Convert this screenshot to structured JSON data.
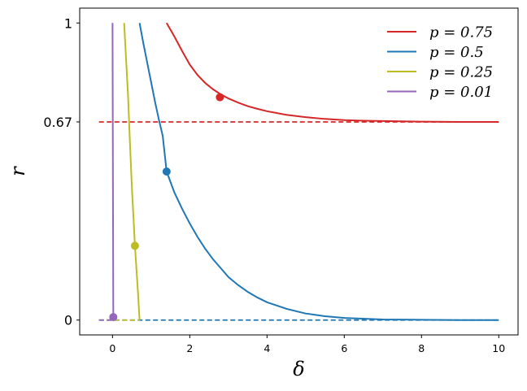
{
  "chart_data": {
    "type": "line",
    "xlabel": "δ",
    "ylabel": "r",
    "xlim": [
      -0.85,
      10.5
    ],
    "ylim": [
      -0.05,
      1.05
    ],
    "x_ticks": [
      {
        "value": 0,
        "label": "0"
      },
      {
        "value": 2,
        "label": "2"
      },
      {
        "value": 4,
        "label": "4"
      },
      {
        "value": 6,
        "label": "6"
      },
      {
        "value": 8,
        "label": "8"
      },
      {
        "value": 10,
        "label": "10"
      }
    ],
    "y_ticks": [
      {
        "value": 0,
        "label": "0"
      },
      {
        "value": 0.667,
        "label": "0.67"
      },
      {
        "value": 1,
        "label": "1"
      }
    ],
    "grid": false,
    "legend_position": "top-right",
    "series": [
      {
        "name": "p = 0.75",
        "legend_label": "p = 0.75",
        "color": "#d62728",
        "points": [
          [
            1.4,
            1.0
          ],
          [
            1.6,
            0.955
          ],
          [
            1.8,
            0.906
          ],
          [
            2.0,
            0.86
          ],
          [
            2.2,
            0.825
          ],
          [
            2.4,
            0.798
          ],
          [
            2.6,
            0.777
          ],
          [
            2.8,
            0.76
          ],
          [
            3.0,
            0.746
          ],
          [
            3.25,
            0.732
          ],
          [
            3.5,
            0.72
          ],
          [
            3.75,
            0.711
          ],
          [
            4.0,
            0.703
          ],
          [
            4.5,
            0.691
          ],
          [
            5.0,
            0.683
          ],
          [
            5.5,
            0.677
          ],
          [
            6.0,
            0.673
          ],
          [
            6.5,
            0.671
          ],
          [
            7.0,
            0.67
          ],
          [
            8.0,
            0.668
          ],
          [
            9.0,
            0.667
          ],
          [
            10.0,
            0.667
          ]
        ],
        "marker": [
          2.78,
          0.75
        ],
        "asymptote": 0.667,
        "asymptote_range": [
          -0.35,
          10.0
        ]
      },
      {
        "name": "p = 0.5",
        "legend_label": "p = 0.5",
        "color": "#1f77b4",
        "points": [
          [
            0.7,
            1.0
          ],
          [
            0.8,
            0.93
          ],
          [
            0.9,
            0.865
          ],
          [
            1.0,
            0.8
          ],
          [
            1.1,
            0.735
          ],
          [
            1.2,
            0.675
          ],
          [
            1.3,
            0.62
          ],
          [
            1.4,
            0.5
          ],
          [
            1.6,
            0.43
          ],
          [
            1.8,
            0.375
          ],
          [
            2.0,
            0.325
          ],
          [
            2.2,
            0.28
          ],
          [
            2.4,
            0.24
          ],
          [
            2.6,
            0.205
          ],
          [
            2.8,
            0.175
          ],
          [
            3.0,
            0.145
          ],
          [
            3.25,
            0.118
          ],
          [
            3.5,
            0.095
          ],
          [
            3.75,
            0.076
          ],
          [
            4.0,
            0.06
          ],
          [
            4.5,
            0.038
          ],
          [
            5.0,
            0.022
          ],
          [
            5.5,
            0.013
          ],
          [
            6.0,
            0.007
          ],
          [
            7.0,
            0.002
          ],
          [
            8.0,
            0.001
          ],
          [
            9.0,
            0.0
          ],
          [
            10.0,
            0.0
          ]
        ],
        "marker": [
          1.4,
          0.5
        ],
        "asymptote": 0,
        "asymptote_range": [
          -0.35,
          10.0
        ]
      },
      {
        "name": "p = 0.25",
        "legend_label": "p = 0.25",
        "color": "#bcbd22",
        "points": [
          [
            0.3,
            1.0
          ],
          [
            0.35,
            0.88
          ],
          [
            0.4,
            0.76
          ],
          [
            0.45,
            0.6
          ],
          [
            0.5,
            0.45
          ],
          [
            0.58,
            0.25
          ],
          [
            0.62,
            0.17
          ],
          [
            0.66,
            0.09
          ],
          [
            0.7,
            0.0
          ]
        ],
        "marker": [
          0.58,
          0.25
        ],
        "asymptote": 0,
        "asymptote_range": [
          -0.35,
          0.7
        ]
      },
      {
        "name": "p = 0.01",
        "legend_label": "p = 0.01",
        "color": "#9467bd",
        "points": [
          [
            0.0,
            1.0
          ],
          [
            0.01,
            0.5
          ],
          [
            0.02,
            0.01
          ]
        ],
        "marker": [
          0.02,
          0.01
        ],
        "asymptote": 0,
        "asymptote_range": [
          -0.35,
          0.0
        ]
      }
    ]
  }
}
